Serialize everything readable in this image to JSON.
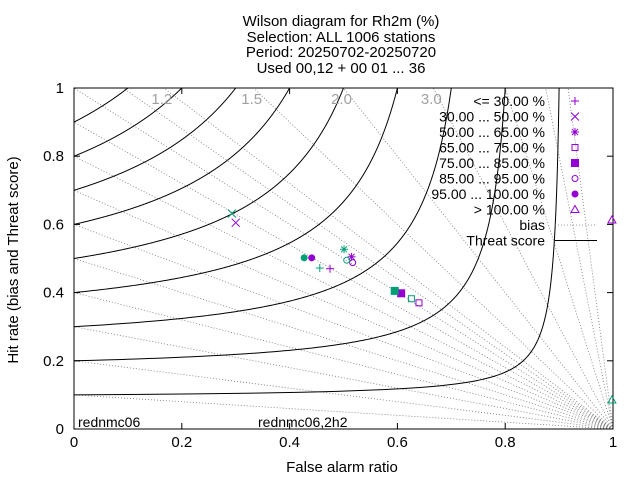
{
  "chart_data": {
    "type": "scatter",
    "title": [
      "Wilson diagram  for Rh2m (%)",
      "Selection: ALL    1006 stations",
      "Period: 20250702-20250720",
      "Used 00,12 + 00 01 ... 36"
    ],
    "xlabel": "False alarm ratio",
    "ylabel": "Hit rate (bias and Threat score)",
    "xlim": [
      0,
      1
    ],
    "ylim": [
      0,
      1
    ],
    "x_ticks": [
      "0",
      "0.2",
      "0.4",
      "0.6",
      "0.8",
      "1"
    ],
    "y_ticks": [
      "0",
      "0.2",
      "0.4",
      "0.6",
      "0.8",
      "1"
    ],
    "bias_lines": [
      0.1,
      0.2,
      0.3,
      0.4,
      0.5,
      0.6,
      0.7,
      0.8,
      0.9,
      1.0,
      1.1,
      1.2,
      1.5,
      2.0,
      3.0,
      5.0,
      8.0,
      12.0
    ],
    "bias_labels": [
      {
        "value": 1.2,
        "text": "1.2"
      },
      {
        "value": 1.5,
        "text": "1.5"
      },
      {
        "value": 2.0,
        "text": "2.0"
      },
      {
        "value": 3.0,
        "text": "3.0"
      }
    ],
    "threat_score_lines": [
      0.1,
      0.2,
      0.3,
      0.4,
      0.5,
      0.6,
      0.7,
      0.8,
      0.9
    ],
    "legend_position": "top-right",
    "legend": [
      {
        "label": "<= 30.00 %",
        "symbol": "plus"
      },
      {
        "label": "30.00 ... 50.00 %",
        "symbol": "cross"
      },
      {
        "label": "50.00 ... 65.00 %",
        "symbol": "asterisk"
      },
      {
        "label": "65.00 ... 75.00 %",
        "symbol": "square-open"
      },
      {
        "label": "75.00 ... 85.00 %",
        "symbol": "square-filled"
      },
      {
        "label": "85.00 ... 95.00 %",
        "symbol": "circle-open"
      },
      {
        "label": "95.00 ... 100.00 %",
        "symbol": "circle-filled"
      },
      {
        "label": "> 100.00 %",
        "symbol": "triangle-open"
      },
      {
        "label": "bias",
        "symbol": "dotted-line"
      },
      {
        "label": "Threat score",
        "symbol": "solid-line"
      }
    ],
    "series": [
      {
        "name": "rednmc06",
        "color": "#9400d3",
        "points": [
          {
            "x": 0.475,
            "y": 0.47,
            "symbol": "plus"
          },
          {
            "x": 0.3,
            "y": 0.605,
            "symbol": "cross"
          },
          {
            "x": 0.515,
            "y": 0.505,
            "symbol": "asterisk"
          },
          {
            "x": 0.64,
            "y": 0.37,
            "symbol": "square-open"
          },
          {
            "x": 0.607,
            "y": 0.398,
            "symbol": "square-filled"
          },
          {
            "x": 0.517,
            "y": 0.488,
            "symbol": "circle-open"
          },
          {
            "x": 0.441,
            "y": 0.502,
            "symbol": "circle-filled"
          },
          {
            "x": 0.998,
            "y": 0.613,
            "symbol": "triangle-open"
          }
        ]
      },
      {
        "name": "rednmc06,2h2",
        "color": "#009e73",
        "points": [
          {
            "x": 0.456,
            "y": 0.472,
            "symbol": "plus"
          },
          {
            "x": 0.293,
            "y": 0.632,
            "symbol": "cross"
          },
          {
            "x": 0.501,
            "y": 0.527,
            "symbol": "asterisk"
          },
          {
            "x": 0.626,
            "y": 0.382,
            "symbol": "square-open"
          },
          {
            "x": 0.595,
            "y": 0.405,
            "symbol": "square-filled"
          },
          {
            "x": 0.506,
            "y": 0.495,
            "symbol": "circle-open"
          },
          {
            "x": 0.427,
            "y": 0.502,
            "symbol": "circle-filled"
          },
          {
            "x": 0.998,
            "y": 0.085,
            "symbol": "triangle-open"
          }
        ]
      }
    ]
  }
}
